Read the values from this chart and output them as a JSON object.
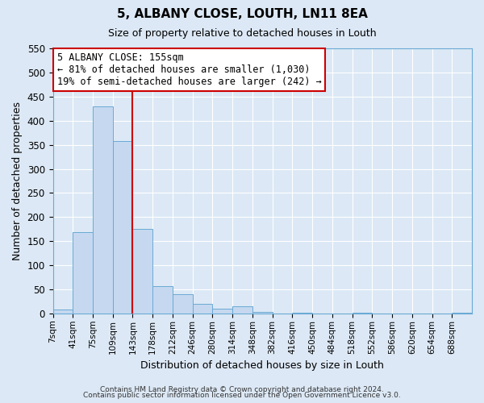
{
  "title": "5, ALBANY CLOSE, LOUTH, LN11 8EA",
  "subtitle": "Size of property relative to detached houses in Louth",
  "xlabel": "Distribution of detached houses by size in Louth",
  "ylabel": "Number of detached properties",
  "bar_labels": [
    "7sqm",
    "41sqm",
    "75sqm",
    "109sqm",
    "143sqm",
    "178sqm",
    "212sqm",
    "246sqm",
    "280sqm",
    "314sqm",
    "348sqm",
    "382sqm",
    "416sqm",
    "450sqm",
    "484sqm",
    "518sqm",
    "552sqm",
    "586sqm",
    "620sqm",
    "654sqm",
    "688sqm"
  ],
  "bar_heights": [
    8,
    168,
    430,
    357,
    175,
    56,
    40,
    20,
    10,
    15,
    3,
    0,
    1,
    0,
    0,
    1,
    0,
    0,
    0,
    0,
    1
  ],
  "bar_color": "#c5d8f0",
  "bar_edge_color": "#6aaad4",
  "annotation_title": "5 ALBANY CLOSE: 155sqm",
  "annotation_line1": "← 81% of detached houses are smaller (1,030)",
  "annotation_line2": "19% of semi-detached houses are larger (242) →",
  "ylim": [
    0,
    550
  ],
  "yticks": [
    0,
    50,
    100,
    150,
    200,
    250,
    300,
    350,
    400,
    450,
    500,
    550
  ],
  "annotation_box_edge": "#cc0000",
  "vline_color": "#cc0000",
  "footer_line1": "Contains HM Land Registry data © Crown copyright and database right 2024.",
  "footer_line2": "Contains public sector information licensed under the Open Government Licence v3.0.",
  "bg_color": "#dce8f5",
  "plot_bg_color": "#dce8f5",
  "grid_color": "#ffffff",
  "spine_color": "#6aaad4"
}
